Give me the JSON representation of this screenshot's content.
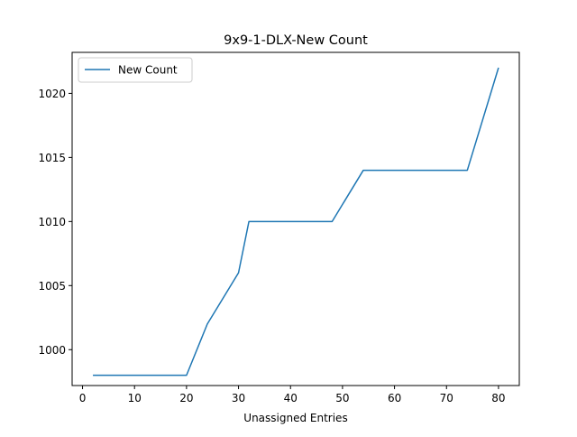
{
  "chart_data": {
    "type": "line",
    "title": "9x9-1-DLX-New Count",
    "xlabel": "Unassigned Entries",
    "ylabel": "",
    "xlim": [
      -2,
      84
    ],
    "ylim": [
      997.2,
      1023.2
    ],
    "xticks": [
      0,
      10,
      20,
      30,
      40,
      50,
      60,
      70,
      80
    ],
    "yticks": [
      1000,
      1005,
      1010,
      1015,
      1020
    ],
    "legend": "top-left",
    "grid": false,
    "series": [
      {
        "name": "New Count",
        "color": "#1f77b4",
        "x": [
          2,
          20,
          24,
          30,
          32,
          48,
          54,
          74,
          80
        ],
        "y": [
          998,
          998,
          1002,
          1006,
          1010,
          1010,
          1014,
          1014,
          1022
        ]
      }
    ]
  }
}
